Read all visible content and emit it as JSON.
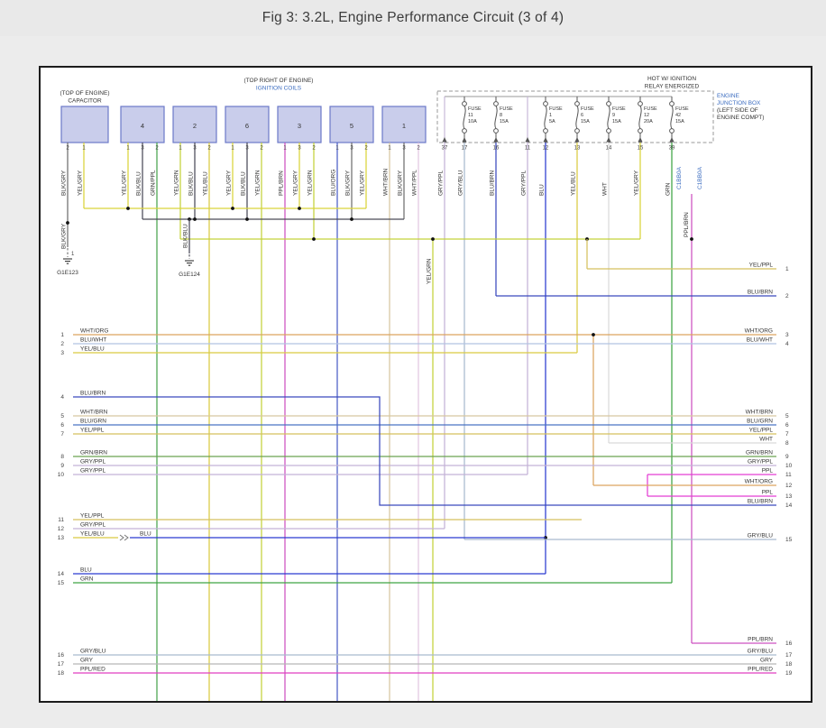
{
  "header": {
    "title": "Fig 3: 3.2L, Engine Performance Circuit (3 of 4)"
  },
  "palette": {
    "blue_text": "#3b6cc0",
    "box_fill": "#c9cdeb",
    "box_stroke": "#6b78c8",
    "text": "#333333",
    "pin_text": "#444444",
    "dot": "#111111",
    "symbol": "#555555"
  },
  "wire_colors": {
    "BLK/GRY": "#6f6f6f",
    "YEL/GRY": "#d9d33a",
    "YEL/GRN": "#c3d23a",
    "YEL/BLU": "#d9cb42",
    "YEL/PPL": "#d5c15e",
    "BLK/BLU": "#4b4b58",
    "GRN/PPL": "#49a34d",
    "PPL/BRN": "#cd50c0",
    "BLU/ORG": "#4a5ec6",
    "WHT/BRN": "#d8c7a0",
    "WHT/PPL": "#e2c6e0",
    "GRY/PPL": "#c3b2d6",
    "GRY/BLU": "#a9bacf",
    "BLU/BRN": "#3a49bd",
    "BLU": "#2a3ad0",
    "WHT": "#d9d9d9",
    "GRN": "#3da444",
    "WHT/ORG": "#dca55f",
    "BLU/WHT": "#b2c4e2",
    "BLU/GRN": "#4a73c4",
    "GRN/BRN": "#6aa352",
    "PPL": "#e43fd3",
    "PPL/RED": "#e13fc0",
    "GRY": "#b7b7b7"
  },
  "capacitor": {
    "location_label": "(TOP OF ENGINE)",
    "name": "CAPACITOR",
    "pins": [
      {
        "pin": "2",
        "wire": "BLK/GRY"
      },
      {
        "pin": "1",
        "wire": "YEL/GRY"
      }
    ]
  },
  "ignition": {
    "location_label": "(TOP RIGHT OF ENGINE)",
    "name": "IGNITION COILS",
    "coils": [
      {
        "number": "4",
        "wires": [
          {
            "pin": "1",
            "label": "YEL/GRY"
          },
          {
            "pin": "3",
            "label": "BLK/BLU"
          },
          {
            "pin": "2",
            "label": "GRN/PPL"
          }
        ]
      },
      {
        "number": "2",
        "wires": [
          {
            "pin": "1",
            "label": "YEL/GRN"
          },
          {
            "pin": "3",
            "label": "BLK/BLU"
          },
          {
            "pin": "2",
            "label": "YEL/BLU"
          }
        ]
      },
      {
        "number": "6",
        "wires": [
          {
            "pin": "1",
            "label": "YEL/GRY"
          },
          {
            "pin": "3",
            "label": "BLK/BLU"
          },
          {
            "pin": "2",
            "label": "YEL/GRN"
          }
        ]
      },
      {
        "number": "3",
        "wires": [
          {
            "pin": "1",
            "label": "PPL/BRN"
          },
          {
            "pin": "3",
            "label": "YEL/GRY"
          },
          {
            "pin": "2",
            "label": "YEL/GRN"
          }
        ]
      },
      {
        "number": "5",
        "wires": [
          {
            "pin": "1",
            "label": "BLU/ORG"
          },
          {
            "pin": "3",
            "label": "BLK/GRY"
          },
          {
            "pin": "2",
            "label": "YEL/GRY"
          }
        ]
      },
      {
        "number": "1",
        "wires": [
          {
            "pin": "1",
            "label": "WHT/BRN"
          },
          {
            "pin": "3",
            "label": "BLK/GRY"
          },
          {
            "pin": "2",
            "label": "WHT/PPL"
          }
        ]
      }
    ]
  },
  "fusebox": {
    "condition_label_lines": [
      "HOT W/ IGNITION",
      "RELAY ENERGIZED"
    ],
    "junction_label_blue": [
      "ENGINE",
      "JUNCTION BOX"
    ],
    "junction_label_black": [
      "(LEFT SIDE OF",
      "ENGINE COMPT)"
    ],
    "fuses": [
      {
        "name": "FUSE",
        "id": "11",
        "amps": "10A"
      },
      {
        "name": "FUSE",
        "id": "8",
        "amps": "15A"
      },
      {
        "name": "FUSE",
        "id": "1",
        "amps": "5A"
      },
      {
        "name": "FUSE",
        "id": "6",
        "amps": "15A"
      },
      {
        "name": "FUSE",
        "id": "9",
        "amps": "15A"
      },
      {
        "name": "FUSE",
        "id": "12",
        "amps": "20A"
      },
      {
        "name": "FUSE",
        "id": "42",
        "amps": "15A"
      }
    ],
    "wires": [
      {
        "pin": "37",
        "label": "GRY/PPL"
      },
      {
        "pin": "17",
        "label": "GRY/BLU"
      },
      {
        "pin": "16",
        "label": "BLU/BRN"
      },
      {
        "pin": "11",
        "label": "GRY/PPL"
      },
      {
        "pin": "12",
        "label": "BLU"
      },
      {
        "pin": "13",
        "label": "YEL/BLU"
      },
      {
        "pin": "14",
        "label": "WHT"
      },
      {
        "pin": "15",
        "label": "YEL/GRY"
      },
      {
        "pin": "39",
        "label": "GRN"
      }
    ],
    "connector": "C1BB0A",
    "relay_wire": {
      "label": "PPL/BRN"
    }
  },
  "grounds": [
    {
      "id": "G1E123",
      "wire": "BLK/GRY",
      "pin": "1"
    },
    {
      "id": "G1E124",
      "wire": "BLK/BLU"
    }
  ],
  "extra_vertical": {
    "label": "YEL/GRN"
  },
  "left_rows": [
    {
      "pin": "1",
      "label": "WHT/ORG"
    },
    {
      "pin": "2",
      "label": "BLU/WHT"
    },
    {
      "pin": "3",
      "label": "YEL/BLU"
    },
    {
      "pin": "4",
      "label": "BLU/BRN"
    },
    {
      "pin": "5",
      "label": "WHT/BRN"
    },
    {
      "pin": "6",
      "label": "BLU/GRN"
    },
    {
      "pin": "7",
      "label": "YEL/PPL"
    },
    {
      "pin": "8",
      "label": "GRN/BRN"
    },
    {
      "pin": "9",
      "label": "GRY/PPL"
    },
    {
      "pin": "10",
      "label": "GRY/PPL"
    },
    {
      "pin": "11",
      "label": "YEL/PPL"
    },
    {
      "pin": "12",
      "label": "GRY/PPL"
    },
    {
      "pin": "13",
      "label": "YEL/BLU",
      "label2": "BLU"
    },
    {
      "pin": "14",
      "label": "BLU"
    },
    {
      "pin": "15",
      "label": "GRN"
    },
    {
      "pin": "16",
      "label": "GRY/BLU"
    },
    {
      "pin": "17",
      "label": "GRY"
    },
    {
      "pin": "18",
      "label": "PPL/RED"
    }
  ],
  "right_rows": [
    {
      "pin": "1",
      "label": "YEL/PPL"
    },
    {
      "pin": "2",
      "label": "BLU/BRN"
    },
    {
      "pin": "3",
      "label": "WHT/ORG"
    },
    {
      "pin": "4",
      "label": "BLU/WHT"
    },
    {
      "pin": "5",
      "label": "WHT/BRN"
    },
    {
      "pin": "6",
      "label": "BLU/GRN"
    },
    {
      "pin": "7",
      "label": "YEL/PPL"
    },
    {
      "pin": "8",
      "label": "WHT"
    },
    {
      "pin": "9",
      "label": "GRN/BRN"
    },
    {
      "pin": "10",
      "label": "GRY/PPL"
    },
    {
      "pin": "11",
      "label": "PPL"
    },
    {
      "pin": "12",
      "label": "WHT/ORG"
    },
    {
      "pin": "13",
      "label": "PPL"
    },
    {
      "pin": "14",
      "label": "BLU/BRN"
    },
    {
      "pin": "15",
      "label": "GRY/BLU"
    },
    {
      "pin": "16",
      "label": "PPL/BRN"
    },
    {
      "pin": "17",
      "label": "GRY/BLU"
    },
    {
      "pin": "18",
      "label": "GRY"
    },
    {
      "pin": "19",
      "label": "PPL/RED"
    }
  ]
}
